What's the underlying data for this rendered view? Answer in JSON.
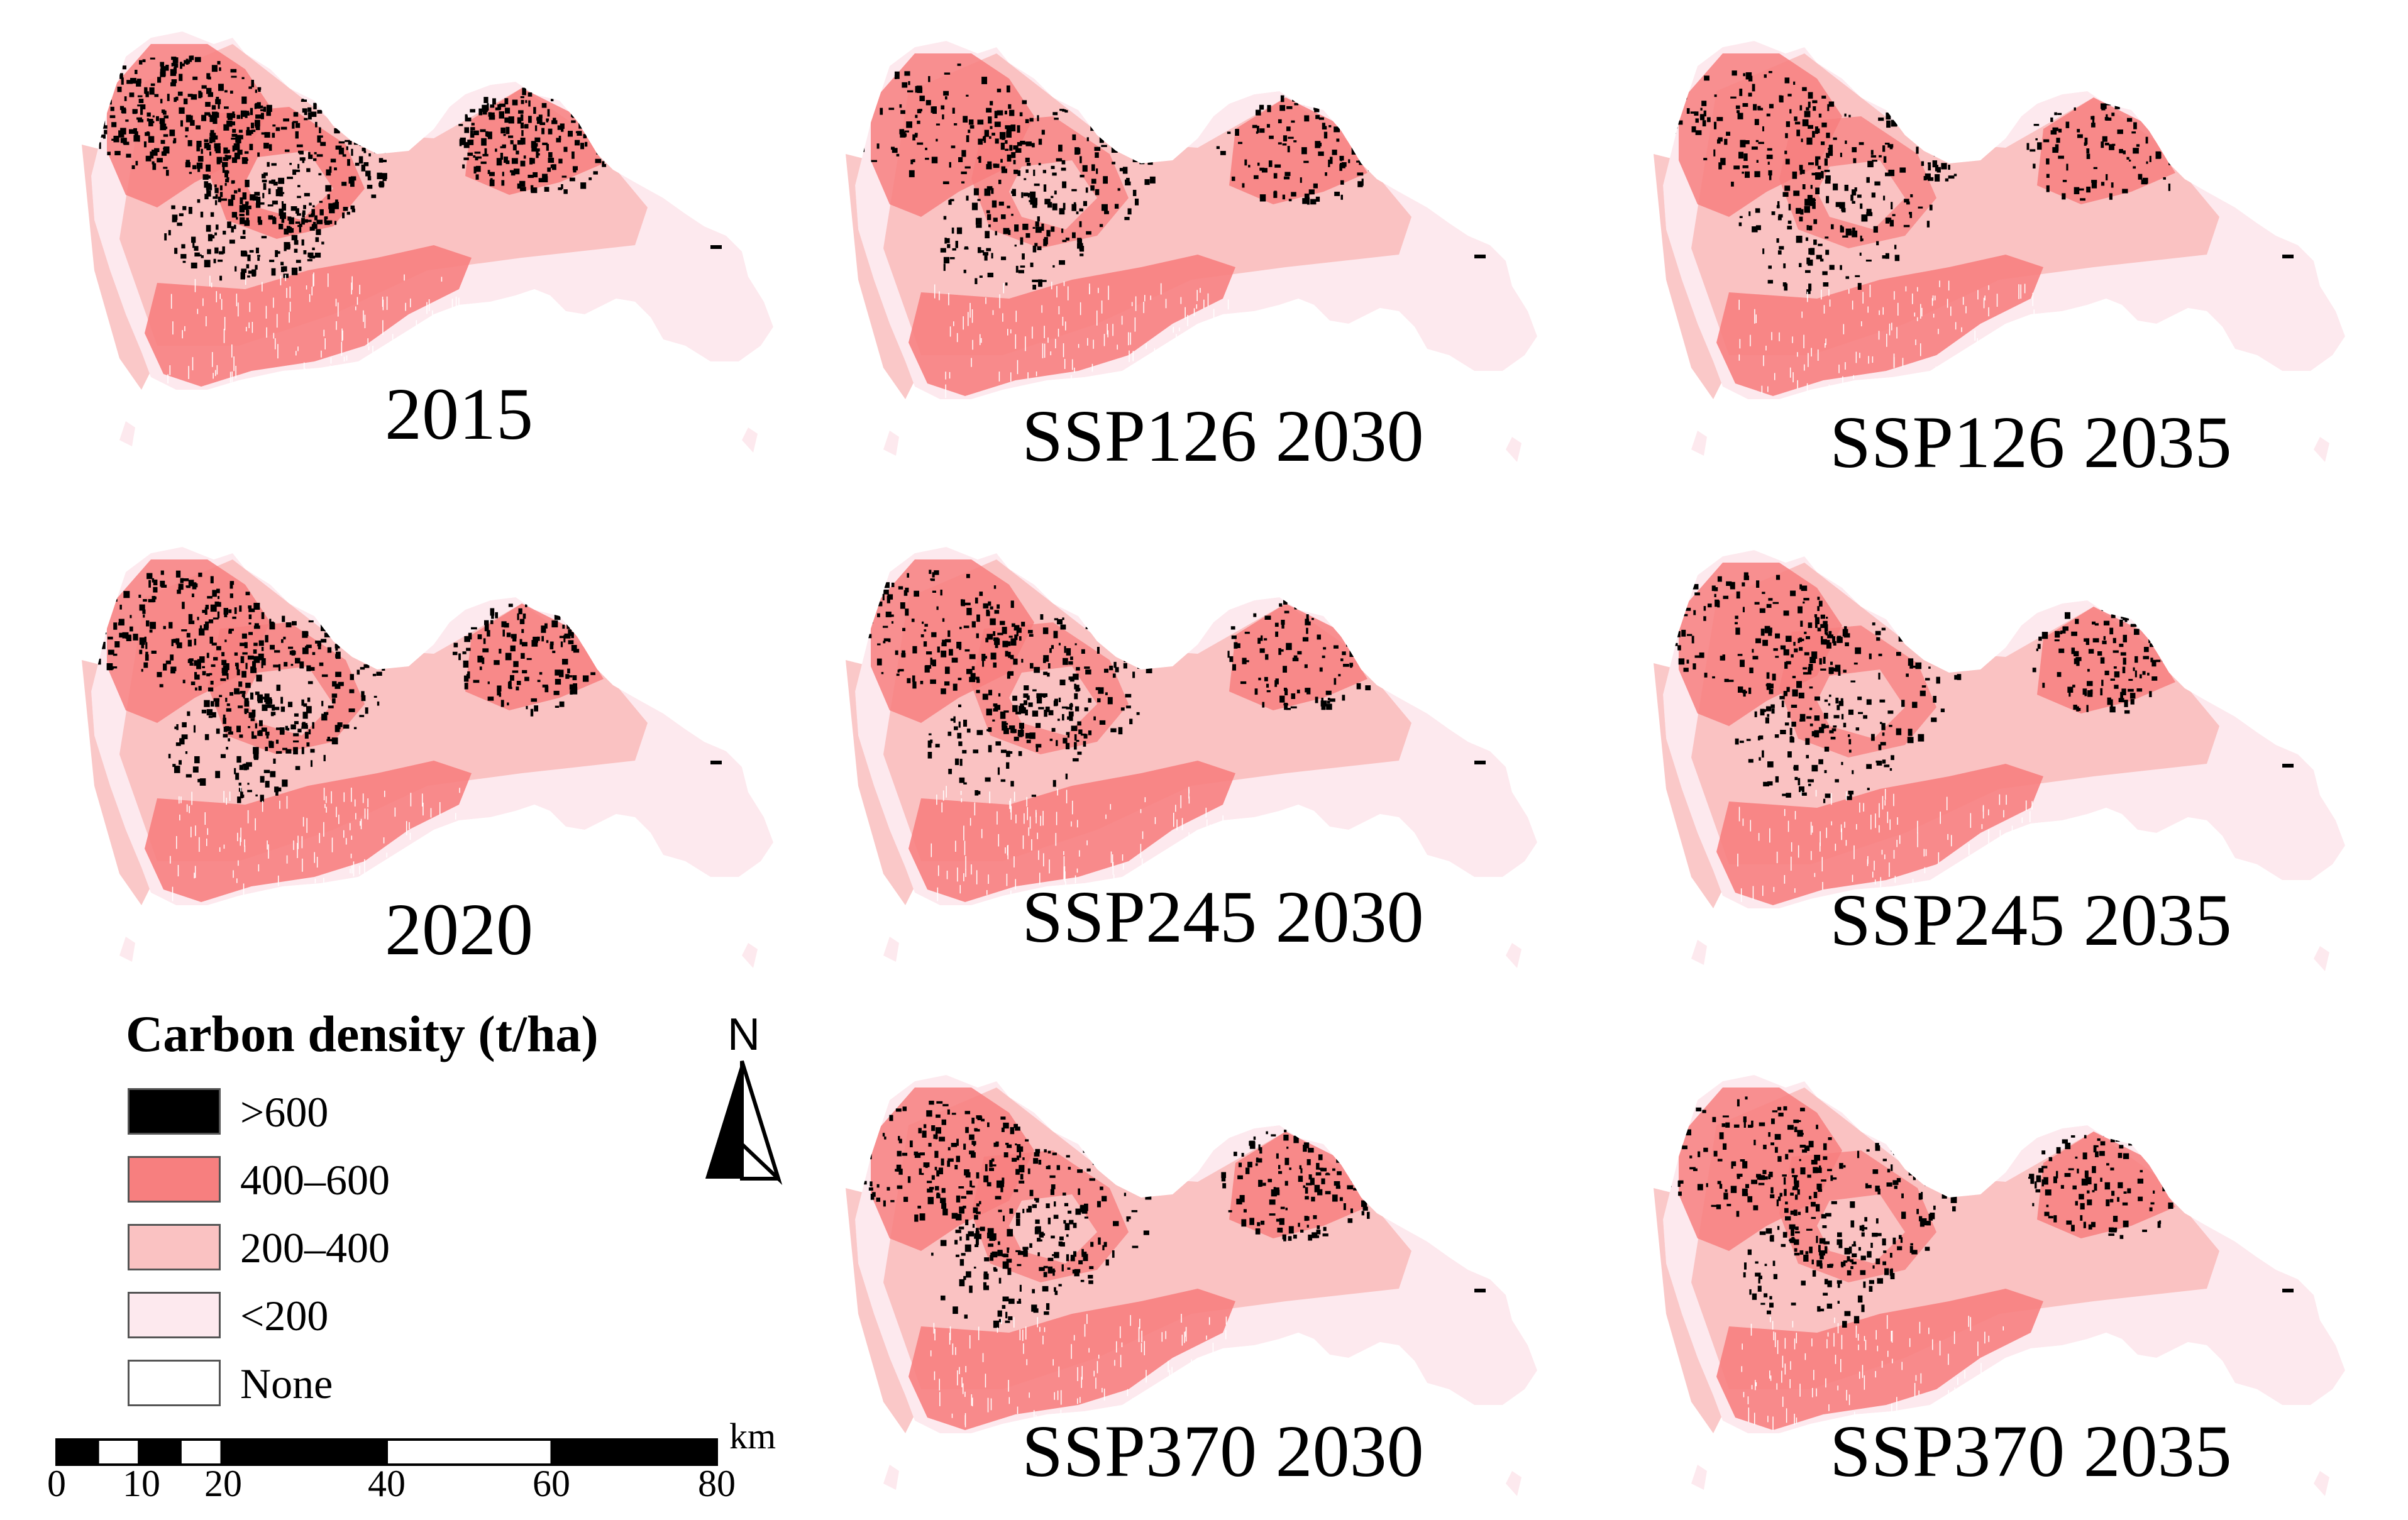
{
  "maps": [
    {
      "id": "2015",
      "label": "2015",
      "intensity": 1.0
    },
    {
      "id": "ssp126-2030",
      "label": "SSP126 2030",
      "intensity": 0.55
    },
    {
      "id": "ssp126-2035",
      "label": "SSP126 2035",
      "intensity": 0.5
    },
    {
      "id": "2020",
      "label": "2020",
      "intensity": 0.72
    },
    {
      "id": "ssp245-2030",
      "label": "SSP245 2030",
      "intensity": 0.55
    },
    {
      "id": "ssp245-2035",
      "label": "SSP245 2035",
      "intensity": 0.52
    },
    {
      "id": "ssp370-2030",
      "label": "SSP370 2030",
      "intensity": 0.6
    },
    {
      "id": "ssp370-2035",
      "label": "SSP370 2035",
      "intensity": 0.52
    }
  ],
  "legend": {
    "title": "Carbon density (t/ha)",
    "items": [
      {
        "label": ">600",
        "color": "#000000"
      },
      {
        "label": "400–600",
        "color": "#f77f7f"
      },
      {
        "label": "200–400",
        "color": "#fac2c2"
      },
      {
        "label": "<200",
        "color": "#fde9ee"
      },
      {
        "label": "None",
        "color": "#ffffff"
      }
    ]
  },
  "north_arrow": {
    "letter": "N"
  },
  "scale_bar": {
    "unit": "km",
    "ticks": [
      "0",
      "10",
      "20",
      "40",
      "60",
      "80"
    ]
  }
}
